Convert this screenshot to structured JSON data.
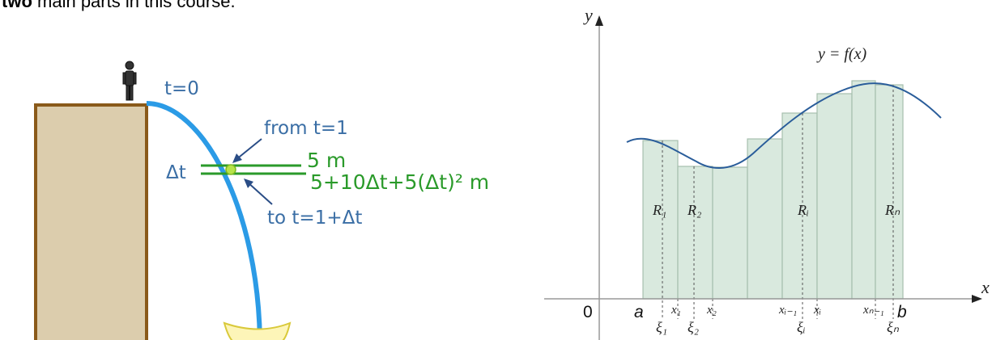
{
  "caption": {
    "lead": "two",
    "rest": "main parts in this course."
  },
  "left_diagram": {
    "t0_label": "t=0",
    "from_label": "from t=1",
    "dt_label": "Δt",
    "five_m_label": "5 m",
    "expr_label": "5+10Δt+5(Δt)² m",
    "to_label": "to t=1+Δt",
    "colors": {
      "tower_fill": "#dccdad",
      "tower_stroke": "#8a5a1a",
      "path": "#2b9be6",
      "label": "#3a6ea5",
      "green": "#2a9a2a"
    }
  },
  "right_diagram": {
    "y_axis_label": "y",
    "x_axis_label": "x",
    "origin_label": "0",
    "curve_label": "y = f(x)",
    "a_label": "a",
    "b_label": "b",
    "region_labels": [
      "R₁",
      "R₂",
      "Rᵢ",
      "Rₙ"
    ],
    "x_tick_labels": [
      "x₁",
      "x₂",
      "xᵢ₋₁",
      "xᵢ",
      "xₙ₋₁"
    ],
    "xi_labels": [
      "ξ₁",
      "ξ₂",
      "ξᵢ",
      "ξₙ"
    ],
    "colors": {
      "rect_fill": "#d9e9de",
      "rect_stroke": "#a7bfae",
      "curve": "#2a5d9a"
    }
  }
}
